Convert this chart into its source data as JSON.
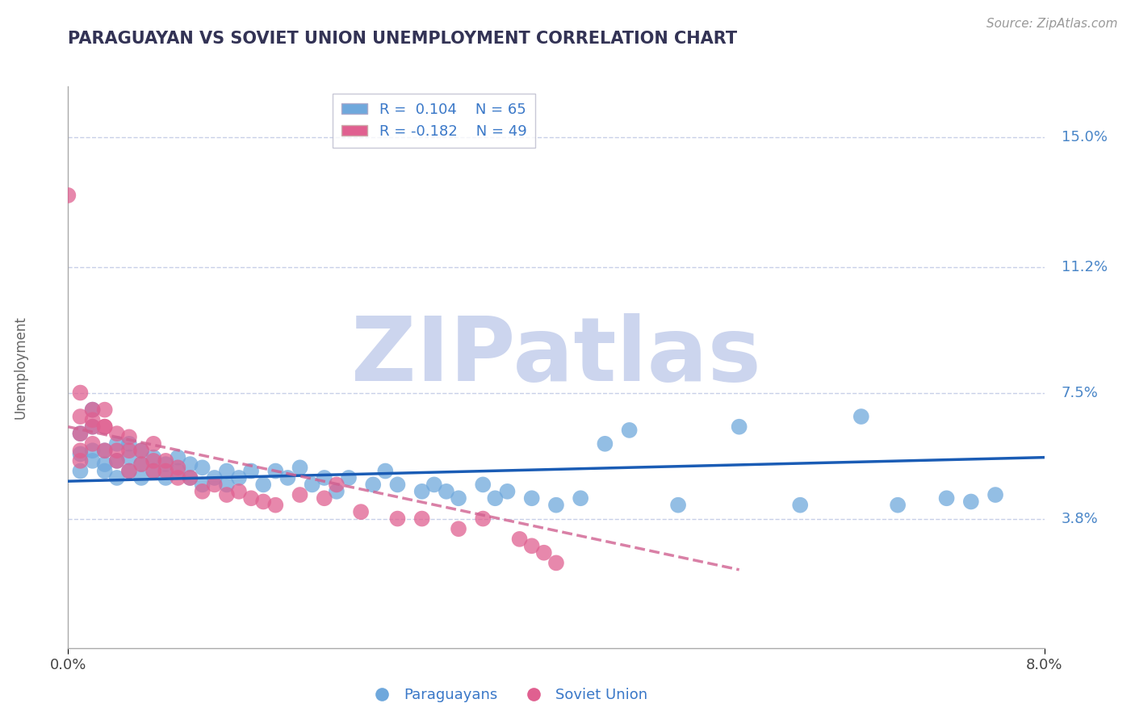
{
  "title": "PARAGUAYAN VS SOVIET UNION UNEMPLOYMENT CORRELATION CHART",
  "source": "Source: ZipAtlas.com",
  "ylabel": "Unemployment",
  "xlim": [
    0.0,
    0.08
  ],
  "ylim": [
    0.0,
    0.165
  ],
  "yticks": [
    0.038,
    0.075,
    0.112,
    0.15
  ],
  "ytick_labels": [
    "3.8%",
    "7.5%",
    "11.2%",
    "15.0%"
  ],
  "blue_R": 0.104,
  "blue_N": 65,
  "pink_R": -0.182,
  "pink_N": 49,
  "blue_color": "#6fa8dc",
  "pink_color": "#e06090",
  "trend_blue_color": "#1a5cb5",
  "trend_pink_color": "#d06090",
  "grid_color": "#c8d0e8",
  "background_color": "#ffffff",
  "watermark_text": "ZIPatlas",
  "watermark_color": "#ccd5ee",
  "blue_scatter_x": [
    0.001,
    0.001,
    0.001,
    0.002,
    0.002,
    0.002,
    0.002,
    0.003,
    0.003,
    0.003,
    0.004,
    0.004,
    0.004,
    0.005,
    0.005,
    0.005,
    0.006,
    0.006,
    0.006,
    0.007,
    0.007,
    0.008,
    0.008,
    0.009,
    0.009,
    0.01,
    0.01,
    0.011,
    0.011,
    0.012,
    0.013,
    0.013,
    0.014,
    0.015,
    0.016,
    0.017,
    0.018,
    0.019,
    0.02,
    0.021,
    0.022,
    0.023,
    0.025,
    0.026,
    0.027,
    0.029,
    0.03,
    0.031,
    0.032,
    0.034,
    0.035,
    0.036,
    0.038,
    0.04,
    0.042,
    0.044,
    0.046,
    0.05,
    0.055,
    0.06,
    0.065,
    0.068,
    0.072,
    0.074,
    0.076
  ],
  "blue_scatter_y": [
    0.057,
    0.052,
    0.063,
    0.055,
    0.065,
    0.07,
    0.058,
    0.052,
    0.058,
    0.054,
    0.05,
    0.055,
    0.06,
    0.052,
    0.056,
    0.06,
    0.05,
    0.054,
    0.058,
    0.052,
    0.056,
    0.05,
    0.054,
    0.052,
    0.056,
    0.05,
    0.054,
    0.048,
    0.053,
    0.05,
    0.048,
    0.052,
    0.05,
    0.052,
    0.048,
    0.052,
    0.05,
    0.053,
    0.048,
    0.05,
    0.046,
    0.05,
    0.048,
    0.052,
    0.048,
    0.046,
    0.048,
    0.046,
    0.044,
    0.048,
    0.044,
    0.046,
    0.044,
    0.042,
    0.044,
    0.06,
    0.064,
    0.042,
    0.065,
    0.042,
    0.068,
    0.042,
    0.044,
    0.043,
    0.045
  ],
  "pink_scatter_x": [
    0.0,
    0.001,
    0.001,
    0.001,
    0.001,
    0.001,
    0.002,
    0.002,
    0.002,
    0.002,
    0.003,
    0.003,
    0.003,
    0.003,
    0.004,
    0.004,
    0.004,
    0.005,
    0.005,
    0.005,
    0.006,
    0.006,
    0.007,
    0.007,
    0.007,
    0.008,
    0.008,
    0.009,
    0.009,
    0.01,
    0.011,
    0.012,
    0.013,
    0.014,
    0.015,
    0.016,
    0.017,
    0.019,
    0.021,
    0.022,
    0.024,
    0.027,
    0.029,
    0.032,
    0.034,
    0.037,
    0.038,
    0.039,
    0.04
  ],
  "pink_scatter_y": [
    0.133,
    0.075,
    0.068,
    0.058,
    0.063,
    0.055,
    0.065,
    0.06,
    0.07,
    0.067,
    0.065,
    0.058,
    0.065,
    0.07,
    0.058,
    0.063,
    0.055,
    0.052,
    0.058,
    0.062,
    0.054,
    0.058,
    0.052,
    0.055,
    0.06,
    0.052,
    0.055,
    0.05,
    0.053,
    0.05,
    0.046,
    0.048,
    0.045,
    0.046,
    0.044,
    0.043,
    0.042,
    0.045,
    0.044,
    0.048,
    0.04,
    0.038,
    0.038,
    0.035,
    0.038,
    0.032,
    0.03,
    0.028,
    0.025
  ],
  "trend_blue_x0": 0.0,
  "trend_blue_x1": 0.08,
  "trend_blue_y0": 0.049,
  "trend_blue_y1": 0.056,
  "trend_pink_x0": 0.0,
  "trend_pink_x1": 0.055,
  "trend_pink_y0": 0.065,
  "trend_pink_y1": 0.023
}
